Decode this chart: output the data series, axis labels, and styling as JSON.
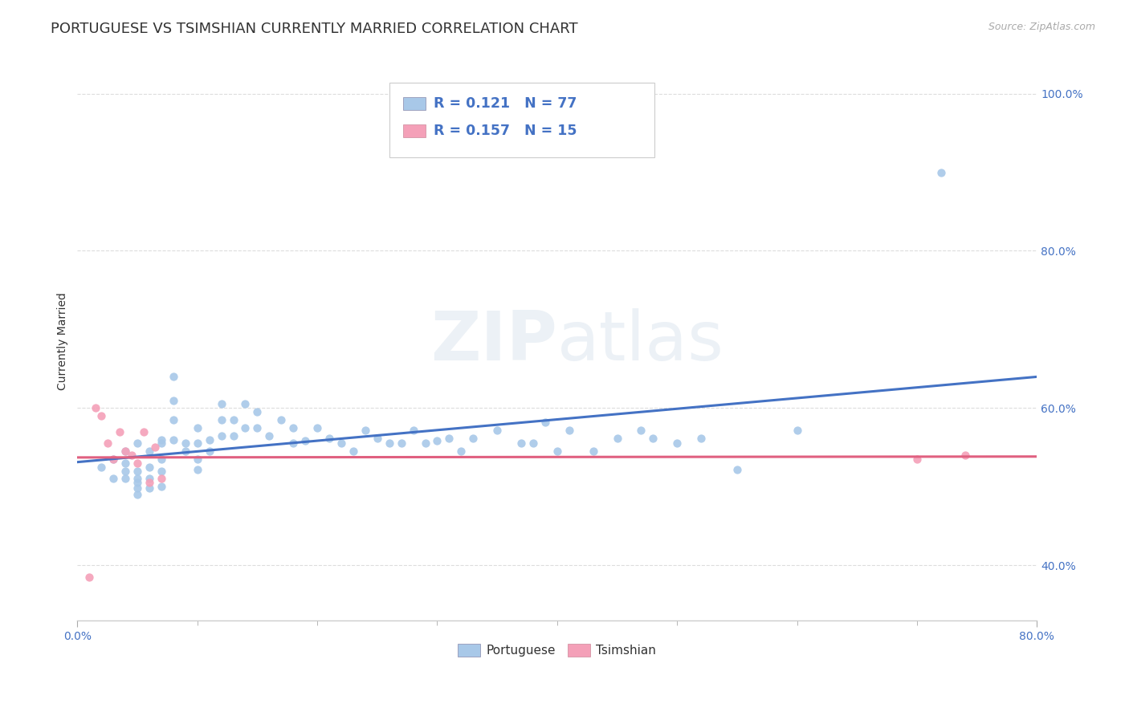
{
  "title": "PORTUGUESE VS TSIMSHIAN CURRENTLY MARRIED CORRELATION CHART",
  "source_text": "Source: ZipAtlas.com",
  "ylabel": "Currently Married",
  "xlim": [
    0.0,
    0.8
  ],
  "ylim": [
    0.33,
    1.04
  ],
  "ytick_labels": [
    "40.0%",
    "60.0%",
    "80.0%",
    "100.0%"
  ],
  "ytick_positions": [
    0.4,
    0.6,
    0.8,
    1.0
  ],
  "legend_r1": "0.121",
  "legend_n1": "77",
  "legend_r2": "0.157",
  "legend_n2": "15",
  "color_portuguese": "#a8c8e8",
  "color_tsimshian": "#f4a0b8",
  "color_line_portuguese": "#4472c4",
  "color_line_tsimshian": "#e06080",
  "portuguese_x": [
    0.02,
    0.03,
    0.03,
    0.04,
    0.04,
    0.04,
    0.04,
    0.05,
    0.05,
    0.05,
    0.05,
    0.05,
    0.05,
    0.06,
    0.06,
    0.06,
    0.06,
    0.07,
    0.07,
    0.07,
    0.07,
    0.07,
    0.08,
    0.08,
    0.08,
    0.08,
    0.09,
    0.09,
    0.1,
    0.1,
    0.1,
    0.1,
    0.11,
    0.11,
    0.12,
    0.12,
    0.12,
    0.13,
    0.13,
    0.14,
    0.14,
    0.15,
    0.15,
    0.16,
    0.17,
    0.18,
    0.18,
    0.19,
    0.2,
    0.21,
    0.22,
    0.23,
    0.24,
    0.25,
    0.26,
    0.27,
    0.28,
    0.29,
    0.3,
    0.31,
    0.32,
    0.33,
    0.35,
    0.37,
    0.38,
    0.39,
    0.4,
    0.41,
    0.43,
    0.45,
    0.47,
    0.48,
    0.5,
    0.52,
    0.55,
    0.6,
    0.72
  ],
  "portuguese_y": [
    0.525,
    0.535,
    0.51,
    0.53,
    0.52,
    0.545,
    0.51,
    0.555,
    0.52,
    0.51,
    0.505,
    0.498,
    0.49,
    0.545,
    0.525,
    0.51,
    0.498,
    0.56,
    0.555,
    0.535,
    0.52,
    0.5,
    0.64,
    0.61,
    0.585,
    0.56,
    0.555,
    0.545,
    0.575,
    0.555,
    0.535,
    0.522,
    0.56,
    0.545,
    0.605,
    0.585,
    0.565,
    0.585,
    0.565,
    0.605,
    0.575,
    0.595,
    0.575,
    0.565,
    0.585,
    0.575,
    0.555,
    0.558,
    0.575,
    0.562,
    0.555,
    0.545,
    0.572,
    0.562,
    0.555,
    0.555,
    0.572,
    0.555,
    0.558,
    0.562,
    0.545,
    0.562,
    0.572,
    0.555,
    0.555,
    0.582,
    0.545,
    0.572,
    0.545,
    0.562,
    0.572,
    0.562,
    0.555,
    0.562,
    0.522,
    0.572,
    0.9
  ],
  "tsimshian_x": [
    0.01,
    0.015,
    0.02,
    0.025,
    0.03,
    0.035,
    0.04,
    0.045,
    0.05,
    0.055,
    0.06,
    0.065,
    0.07,
    0.7,
    0.74
  ],
  "tsimshian_y": [
    0.385,
    0.6,
    0.59,
    0.555,
    0.535,
    0.57,
    0.545,
    0.54,
    0.53,
    0.57,
    0.505,
    0.55,
    0.51,
    0.535,
    0.54
  ],
  "background_color": "#ffffff",
  "grid_color": "#dddddd",
  "title_fontsize": 13,
  "axis_label_fontsize": 10,
  "tick_fontsize": 10
}
